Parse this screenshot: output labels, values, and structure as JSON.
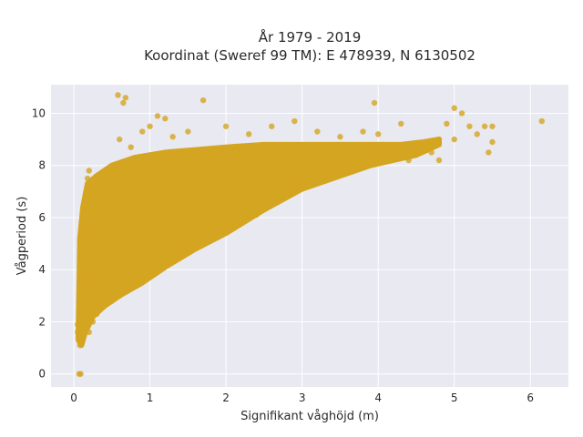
{
  "chart_data": {
    "type": "scatter",
    "title": "År 1979 - 2019",
    "subtitle": "Koordinat (Sweref 99 TM): E 478939, N 6130502",
    "xlabel": "Signifikant våghöjd (m)",
    "ylabel": "Vågperiod (s)",
    "xlim": [
      -0.3,
      6.5
    ],
    "ylim": [
      -0.5,
      11.1
    ],
    "xticks": [
      0,
      1,
      2,
      3,
      4,
      5,
      6
    ],
    "yticks": [
      0,
      2,
      4,
      6,
      8,
      10
    ],
    "grid": true,
    "colors": {
      "marker": "#d4a520",
      "plot_bg": "#e8e9f1",
      "grid": "#ffffff"
    },
    "series": [
      {
        "points": [
          [
            0.05,
            1.6
          ],
          [
            0.05,
            1.9
          ],
          [
            0.06,
            1.4
          ],
          [
            0.07,
            0.0
          ],
          [
            0.09,
            0.0
          ],
          [
            0.08,
            1.1
          ],
          [
            0.1,
            1.3
          ],
          [
            0.1,
            2.5
          ],
          [
            0.1,
            3.5
          ],
          [
            0.12,
            4.5
          ],
          [
            0.12,
            5.5
          ],
          [
            0.15,
            6.5
          ],
          [
            0.18,
            7.5
          ],
          [
            0.2,
            7.8
          ],
          [
            0.2,
            1.6
          ],
          [
            0.25,
            2.0
          ],
          [
            0.3,
            2.3
          ],
          [
            0.35,
            7.0
          ],
          [
            0.4,
            2.6
          ],
          [
            0.45,
            7.7
          ],
          [
            0.5,
            2.8
          ],
          [
            0.55,
            8.0
          ],
          [
            0.6,
            3.0
          ],
          [
            0.6,
            9.0
          ],
          [
            0.65,
            10.4
          ],
          [
            0.58,
            10.7
          ],
          [
            0.68,
            10.6
          ],
          [
            0.7,
            3.2
          ],
          [
            0.75,
            8.7
          ],
          [
            0.8,
            3.4
          ],
          [
            0.9,
            3.6
          ],
          [
            0.9,
            9.3
          ],
          [
            1.0,
            3.8
          ],
          [
            1.0,
            9.5
          ],
          [
            1.1,
            4.0
          ],
          [
            1.1,
            9.9
          ],
          [
            1.2,
            4.2
          ],
          [
            1.2,
            9.8
          ],
          [
            1.3,
            4.4
          ],
          [
            1.3,
            9.1
          ],
          [
            1.4,
            4.6
          ],
          [
            1.5,
            4.7
          ],
          [
            1.5,
            9.3
          ],
          [
            1.6,
            4.9
          ],
          [
            1.7,
            5.0
          ],
          [
            1.7,
            10.5
          ],
          [
            1.8,
            5.2
          ],
          [
            1.9,
            5.3
          ],
          [
            2.0,
            5.5
          ],
          [
            2.0,
            9.5
          ],
          [
            2.1,
            5.7
          ],
          [
            2.2,
            5.8
          ],
          [
            2.3,
            6.0
          ],
          [
            2.3,
            9.2
          ],
          [
            2.4,
            6.1
          ],
          [
            2.5,
            6.3
          ],
          [
            2.6,
            6.5
          ],
          [
            2.6,
            9.5
          ],
          [
            2.7,
            6.7
          ],
          [
            2.8,
            6.8
          ],
          [
            2.9,
            7.0
          ],
          [
            2.9,
            9.7
          ],
          [
            3.0,
            7.2
          ],
          [
            3.1,
            7.3
          ],
          [
            3.2,
            7.5
          ],
          [
            3.2,
            9.3
          ],
          [
            3.3,
            7.6
          ],
          [
            3.4,
            7.7
          ],
          [
            3.5,
            7.8
          ],
          [
            3.5,
            9.1
          ],
          [
            3.6,
            7.9
          ],
          [
            3.7,
            8.0
          ],
          [
            3.8,
            8.1
          ],
          [
            3.8,
            9.3
          ],
          [
            3.9,
            8.2
          ],
          [
            3.95,
            10.4
          ],
          [
            4.0,
            8.3
          ],
          [
            4.0,
            9.2
          ],
          [
            4.1,
            8.5
          ],
          [
            4.2,
            8.3
          ],
          [
            4.3,
            8.4
          ],
          [
            4.3,
            9.6
          ],
          [
            4.4,
            8.2
          ],
          [
            4.5,
            8.5
          ],
          [
            4.6,
            8.6
          ],
          [
            4.7,
            8.5
          ],
          [
            4.8,
            9.0
          ],
          [
            4.8,
            8.2
          ],
          [
            4.9,
            9.6
          ],
          [
            5.0,
            10.2
          ],
          [
            5.0,
            9.0
          ],
          [
            5.1,
            10.0
          ],
          [
            5.2,
            9.5
          ],
          [
            5.3,
            9.2
          ],
          [
            5.4,
            9.5
          ],
          [
            5.45,
            8.5
          ],
          [
            5.5,
            8.9
          ],
          [
            5.5,
            9.5
          ],
          [
            6.15,
            9.7
          ]
        ]
      }
    ]
  }
}
